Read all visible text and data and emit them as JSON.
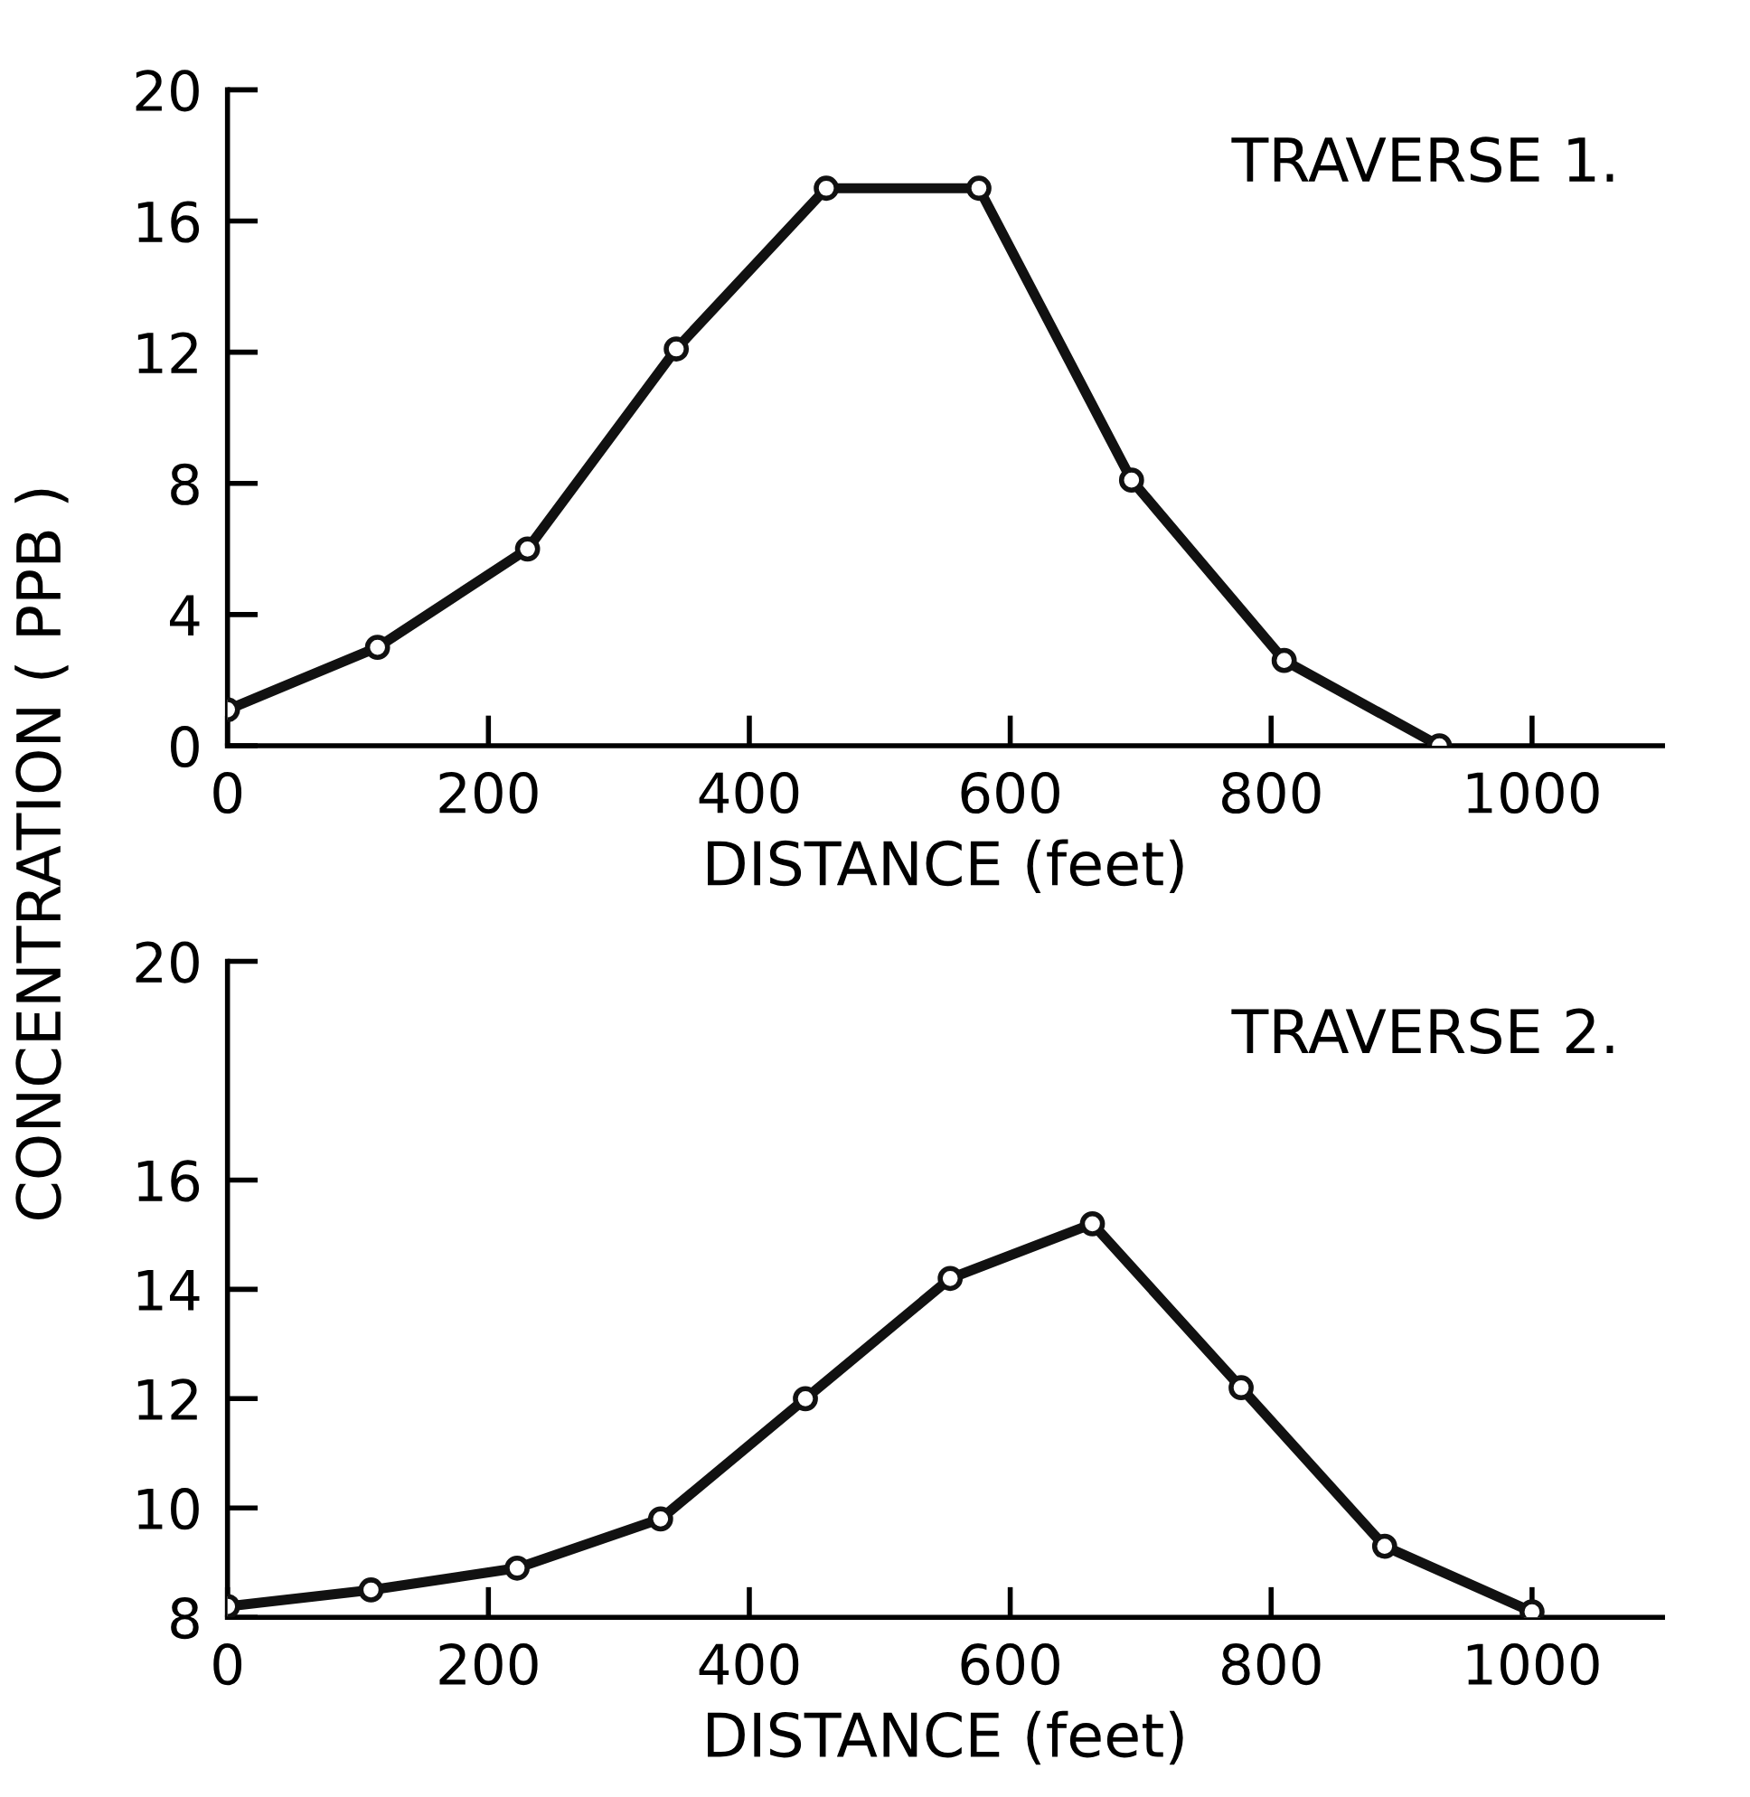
{
  "chart_data": [
    {
      "type": "line",
      "title": "TRAVERSE 1.",
      "xlabel": "DISTANCE (feet)",
      "ylabel": "CONCENTRATION ( PPB )",
      "marker": "circle",
      "x": [
        0,
        115,
        230,
        344,
        459,
        576,
        693,
        810,
        929
      ],
      "series": [
        {
          "color": "#111111",
          "values": [
            1.1,
            3.0,
            6.0,
            12.1,
            17.0,
            17.0,
            8.1,
            2.6,
            0.0
          ]
        }
      ],
      "xlim": [
        0,
        1100
      ],
      "xticks": [
        0,
        200,
        400,
        600,
        800,
        1000
      ],
      "ylim": [
        0,
        20
      ],
      "yticks": [
        0,
        4,
        8,
        12,
        16,
        20
      ]
    },
    {
      "type": "line",
      "title": "TRAVERSE 2.",
      "xlabel": "DISTANCE (feet)",
      "marker": "circle",
      "x": [
        0,
        110,
        222,
        332,
        443,
        554,
        663,
        777,
        887,
        1000
      ],
      "series": [
        {
          "color": "#111111",
          "values": [
            8.2,
            8.5,
            8.9,
            9.8,
            12.0,
            14.2,
            15.2,
            12.2,
            9.3,
            8.1
          ]
        }
      ],
      "xlim": [
        0,
        1100
      ],
      "xticks": [
        0,
        200,
        400,
        600,
        800,
        1000
      ],
      "ylim": [
        8,
        20
      ],
      "yticks": [
        8,
        10,
        12,
        14,
        16,
        20
      ]
    }
  ]
}
